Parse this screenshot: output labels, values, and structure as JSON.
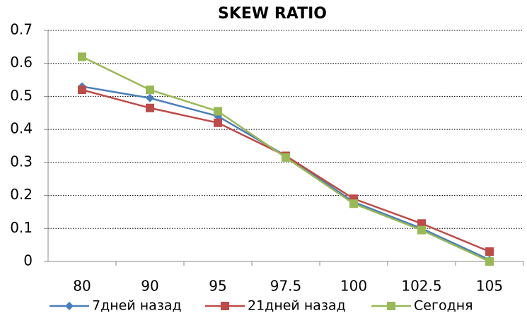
{
  "chart_data": {
    "type": "line",
    "title": "SKEW RATIO",
    "categories": [
      "80",
      "90",
      "95",
      "97.5",
      "100",
      "102.5",
      "105"
    ],
    "series": [
      {
        "name": "7дней назад",
        "color": "#4a7ebb",
        "marker": "diamond",
        "values": [
          0.53,
          0.495,
          0.44,
          0.32,
          0.18,
          0.1,
          0.005
        ]
      },
      {
        "name": "21дней назад",
        "color": "#be4b48",
        "marker": "square",
        "values": [
          0.52,
          0.465,
          0.42,
          0.32,
          0.19,
          0.115,
          0.03
        ]
      },
      {
        "name": "Сегодня",
        "color": "#98b954",
        "marker": "square",
        "values": [
          0.62,
          0.52,
          0.455,
          0.315,
          0.175,
          0.095,
          0.0
        ]
      }
    ],
    "ylim": [
      0,
      0.7
    ],
    "yticks": [
      0,
      0.1,
      0.2,
      0.3,
      0.4,
      0.5,
      0.6,
      0.7
    ],
    "grid": true,
    "legend": "bottom"
  }
}
